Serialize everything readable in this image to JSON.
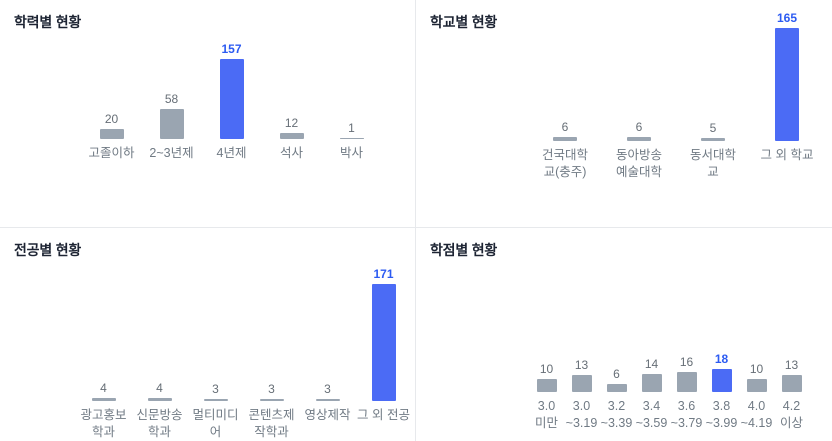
{
  "colors": {
    "bar_default": "#9aa5b1",
    "bar_highlight": "#4b6bf5",
    "value_default": "#666e76",
    "value_highlight": "#2c5bf2",
    "category_label": "#707a84",
    "title": "#1d2433",
    "divider": "#e7e9ec"
  },
  "chart_data": [
    {
      "type": "bar",
      "title": "학력별 현황",
      "categories": [
        "고졸이하",
        "2~3년제",
        "4년제",
        "석사",
        "박사"
      ],
      "values": [
        20,
        58,
        157,
        12,
        1
      ],
      "highlight_index": 2,
      "highlight_category": "4년제",
      "ylim": [
        0,
        157
      ],
      "grid": false,
      "legend": false,
      "value_labels": "above-bars",
      "axes": "hidden"
    },
    {
      "type": "bar",
      "title": "학교별 현황",
      "categories": [
        "건국대학\n교(충주)",
        "동아방송\n예술대학",
        "동서대학\n교",
        "그 외 학교"
      ],
      "values": [
        6,
        6,
        5,
        165
      ],
      "highlight_index": 3,
      "highlight_category": "그 외 학교",
      "ylim": [
        0,
        165
      ],
      "grid": false,
      "legend": false,
      "value_labels": "above-bars",
      "axes": "hidden"
    },
    {
      "type": "bar",
      "title": "전공별 현황",
      "categories": [
        "광고홍보\n학과",
        "신문방송\n학과",
        "멀티미디\n어",
        "콘텐츠제\n작학과",
        "영상제작",
        "그 외 전공"
      ],
      "values": [
        4,
        4,
        3,
        3,
        3,
        171
      ],
      "highlight_index": 5,
      "highlight_category": "그 외 전공",
      "ylim": [
        0,
        171
      ],
      "grid": false,
      "legend": false,
      "value_labels": "above-bars",
      "axes": "hidden"
    },
    {
      "type": "bar",
      "title": "학점별 현황",
      "categories": [
        "3.0\n미만",
        "3.0\n~3.19",
        "3.2\n~3.39",
        "3.4\n~3.59",
        "3.6\n~3.79",
        "3.8\n~3.99",
        "4.0\n~4.19",
        "4.2\n이상"
      ],
      "values": [
        10,
        13,
        6,
        14,
        16,
        18,
        10,
        13
      ],
      "highlight_index": 5,
      "highlight_category": "3.8 ~3.99",
      "ylim": [
        0,
        18
      ],
      "grid": false,
      "legend": false,
      "value_labels": "above-bars",
      "axes": "hidden"
    }
  ]
}
